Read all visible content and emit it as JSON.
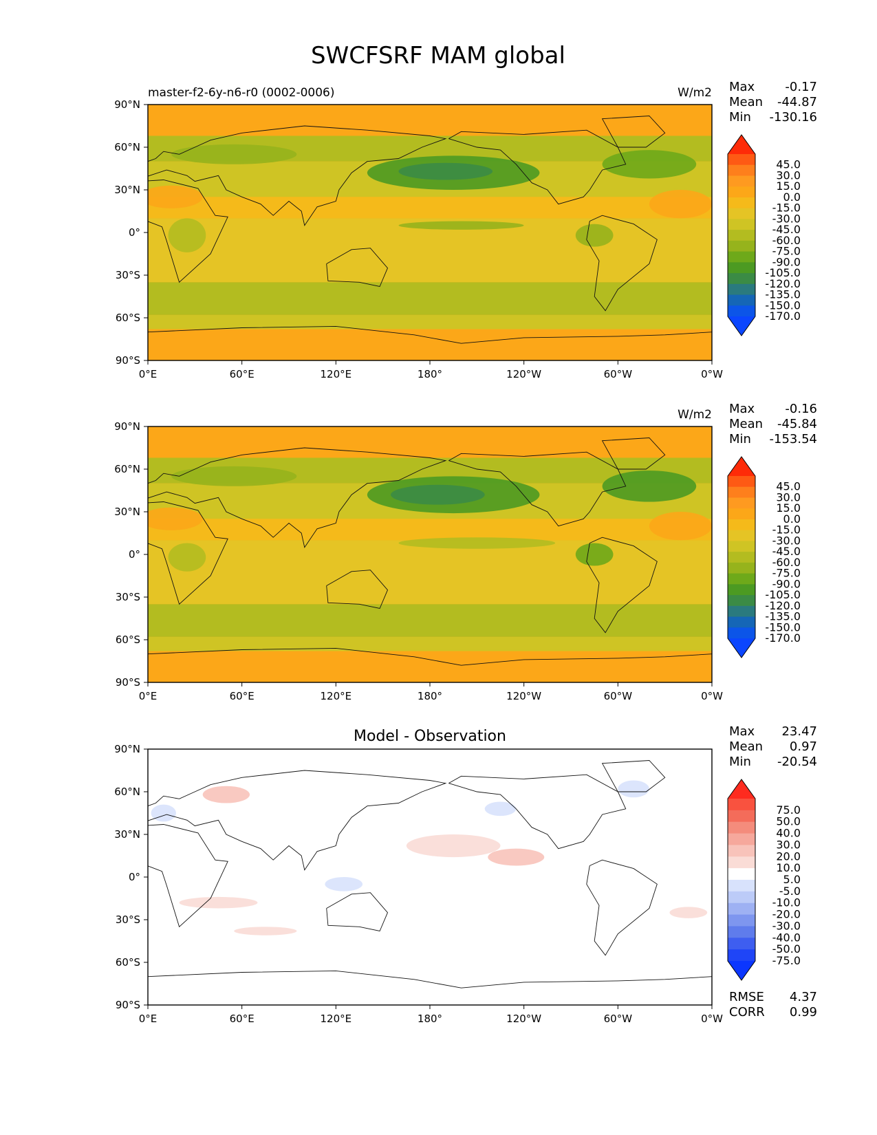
{
  "figure": {
    "title": "SWCFSRF MAM global"
  },
  "chart_data": [
    {
      "type": "heatmap",
      "panel": "model",
      "left_title": "master-f2-6y-n6-r0 (0002-0006)",
      "center_title": "",
      "units": "W/m2",
      "stats": [
        {
          "label": "Max",
          "value": "-0.17"
        },
        {
          "label": "Mean",
          "value": "-44.87"
        },
        {
          "label": "Min",
          "value": "-130.16"
        }
      ],
      "colorbar": {
        "labels": [
          "45.0",
          "30.0",
          "15.0",
          "0.0",
          "-15.0",
          "-30.0",
          "-45.0",
          "-60.0",
          "-75.0",
          "-90.0",
          "-105.0",
          "-120.0",
          "-135.0",
          "-150.0",
          "-170.0"
        ],
        "colors": [
          "#fe2b08",
          "#fe5a14",
          "#fe7f1c",
          "#fe9a20",
          "#fca718",
          "#f5ba1a",
          "#e5c425",
          "#cfc424",
          "#b3bc20",
          "#96b31c",
          "#6ea91a",
          "#4c9a22",
          "#3b8b45",
          "#2a7a7e",
          "#1566b6",
          "#0c55e8",
          "#0b46fe"
        ],
        "extend": "both"
      },
      "x_ticks": [
        "0°E",
        "60°E",
        "120°E",
        "180°",
        "120°W",
        "60°W",
        "0°W"
      ],
      "y_ticks": [
        "90°N",
        "60°N",
        "30°N",
        "0°",
        "30°S",
        "60°S",
        "90°S"
      ],
      "xlim": [
        0,
        360
      ],
      "ylim": [
        -90,
        90
      ],
      "map_background": "#fca718",
      "field_bands": [
        {
          "lat_range": [
            68,
            90
          ],
          "color": "#fca718"
        },
        {
          "lat_range": [
            50,
            68
          ],
          "color": "#b3bc20"
        },
        {
          "lat_range": [
            25,
            50
          ],
          "color": "#cfc424"
        },
        {
          "lat_range": [
            10,
            25
          ],
          "color": "#f5ba1a"
        },
        {
          "lat_range": [
            -15,
            10
          ],
          "color": "#e5c425"
        },
        {
          "lat_range": [
            -35,
            -15
          ],
          "color": "#e5c425"
        },
        {
          "lat_range": [
            -58,
            -35
          ],
          "color": "#b3bc20"
        },
        {
          "lat_range": [
            -68,
            -58
          ],
          "color": "#cfc424"
        },
        {
          "lat_range": [
            -90,
            -68
          ],
          "color": "#fca718"
        }
      ],
      "field_blobs": [
        {
          "lon": 195,
          "lat": 42,
          "rlon": 55,
          "rlat": 12,
          "color": "#4c9a22"
        },
        {
          "lon": 190,
          "lat": 43,
          "rlon": 30,
          "rlat": 6,
          "color": "#3b8b45"
        },
        {
          "lon": 320,
          "lat": 48,
          "rlon": 30,
          "rlat": 10,
          "color": "#6ea91a"
        },
        {
          "lon": 55,
          "lat": 55,
          "rlon": 40,
          "rlat": 7,
          "color": "#96b31c"
        },
        {
          "lon": 200,
          "lat": 5,
          "rlon": 40,
          "rlat": 3,
          "color": "#96b31c"
        },
        {
          "lon": 25,
          "lat": -2,
          "rlon": 12,
          "rlat": 12,
          "color": "#b3bc20"
        },
        {
          "lon": 285,
          "lat": -2,
          "rlon": 12,
          "rlat": 8,
          "color": "#96b31c"
        },
        {
          "lon": 15,
          "lat": 25,
          "rlon": 20,
          "rlat": 8,
          "color": "#fca718"
        },
        {
          "lon": 340,
          "lat": 20,
          "rlon": 20,
          "rlat": 10,
          "color": "#fca718"
        }
      ]
    },
    {
      "type": "heatmap",
      "panel": "observation",
      "left_title": "",
      "center_title": "",
      "units": "W/m2",
      "stats": [
        {
          "label": "Max",
          "value": "-0.16"
        },
        {
          "label": "Mean",
          "value": "-45.84"
        },
        {
          "label": "Min",
          "value": "-153.54"
        }
      ],
      "colorbar": {
        "labels": [
          "45.0",
          "30.0",
          "15.0",
          "0.0",
          "-15.0",
          "-30.0",
          "-45.0",
          "-60.0",
          "-75.0",
          "-90.0",
          "-105.0",
          "-120.0",
          "-135.0",
          "-150.0",
          "-170.0"
        ],
        "colors": [
          "#fe2b08",
          "#fe5a14",
          "#fe7f1c",
          "#fe9a20",
          "#fca718",
          "#f5ba1a",
          "#e5c425",
          "#cfc424",
          "#b3bc20",
          "#96b31c",
          "#6ea91a",
          "#4c9a22",
          "#3b8b45",
          "#2a7a7e",
          "#1566b6",
          "#0c55e8",
          "#0b46fe"
        ],
        "extend": "both"
      },
      "x_ticks": [
        "0°E",
        "60°E",
        "120°E",
        "180°",
        "120°W",
        "60°W",
        "0°W"
      ],
      "y_ticks": [
        "90°N",
        "60°N",
        "30°N",
        "0°",
        "30°S",
        "60°S",
        "90°S"
      ],
      "xlim": [
        0,
        360
      ],
      "ylim": [
        -90,
        90
      ],
      "map_background": "#fca718",
      "field_bands": [
        {
          "lat_range": [
            68,
            90
          ],
          "color": "#fca718"
        },
        {
          "lat_range": [
            50,
            68
          ],
          "color": "#b3bc20"
        },
        {
          "lat_range": [
            25,
            50
          ],
          "color": "#cfc424"
        },
        {
          "lat_range": [
            10,
            25
          ],
          "color": "#f5ba1a"
        },
        {
          "lat_range": [
            -15,
            10
          ],
          "color": "#e5c425"
        },
        {
          "lat_range": [
            -35,
            -15
          ],
          "color": "#e5c425"
        },
        {
          "lat_range": [
            -58,
            -35
          ],
          "color": "#b3bc20"
        },
        {
          "lat_range": [
            -68,
            -58
          ],
          "color": "#cfc424"
        },
        {
          "lat_range": [
            -90,
            -68
          ],
          "color": "#fca718"
        }
      ],
      "field_blobs": [
        {
          "lon": 195,
          "lat": 42,
          "rlon": 55,
          "rlat": 13,
          "color": "#4c9a22"
        },
        {
          "lon": 185,
          "lat": 42,
          "rlon": 30,
          "rlat": 7,
          "color": "#3b8b45"
        },
        {
          "lon": 320,
          "lat": 48,
          "rlon": 30,
          "rlat": 11,
          "color": "#4c9a22"
        },
        {
          "lon": 55,
          "lat": 55,
          "rlon": 40,
          "rlat": 7,
          "color": "#96b31c"
        },
        {
          "lon": 210,
          "lat": 8,
          "rlon": 50,
          "rlat": 4,
          "color": "#b3bc20"
        },
        {
          "lon": 25,
          "lat": -2,
          "rlon": 12,
          "rlat": 10,
          "color": "#b3bc20"
        },
        {
          "lon": 285,
          "lat": 0,
          "rlon": 12,
          "rlat": 8,
          "color": "#6ea91a"
        },
        {
          "lon": 15,
          "lat": 25,
          "rlon": 20,
          "rlat": 8,
          "color": "#fca718"
        },
        {
          "lon": 340,
          "lat": 20,
          "rlon": 20,
          "rlat": 10,
          "color": "#fca718"
        }
      ]
    },
    {
      "type": "heatmap",
      "panel": "difference",
      "left_title": "",
      "center_title": "Model - Observation",
      "units": "",
      "stats": [
        {
          "label": "Max",
          "value": "23.47"
        },
        {
          "label": "Mean",
          "value": "0.97"
        },
        {
          "label": "Min",
          "value": "-20.54"
        }
      ],
      "metrics": [
        {
          "label": "RMSE",
          "value": "4.37"
        },
        {
          "label": "CORR",
          "value": "0.99"
        }
      ],
      "colorbar": {
        "labels": [
          "75.0",
          "50.0",
          "40.0",
          "30.0",
          "20.0",
          "10.0",
          "5.0",
          "-5.0",
          "-10.0",
          "-20.0",
          "-30.0",
          "-40.0",
          "-50.0",
          "-75.0"
        ],
        "colors": [
          "#fe2b1f",
          "#f9523f",
          "#f46c5a",
          "#f48c7c",
          "#f6a89c",
          "#f8c3ba",
          "#fadcd6",
          "#ffffff",
          "#d8e2fc",
          "#bccbf8",
          "#9eb1f3",
          "#7e96ef",
          "#5f7cec",
          "#3e5ef0",
          "#1f45f7",
          "#0b36fe"
        ],
        "extend": "both"
      },
      "x_ticks": [
        "0°E",
        "60°E",
        "120°E",
        "180°",
        "120°W",
        "60°W",
        "0°W"
      ],
      "y_ticks": [
        "90°N",
        "60°N",
        "30°N",
        "0°",
        "30°S",
        "60°S",
        "90°S"
      ],
      "xlim": [
        0,
        360
      ],
      "ylim": [
        -90,
        90
      ],
      "map_background": "#ffffff",
      "field_bands": [],
      "field_blobs": [
        {
          "lon": 50,
          "lat": 58,
          "rlon": 15,
          "rlat": 6,
          "color": "#f8c3ba"
        },
        {
          "lon": 195,
          "lat": 22,
          "rlon": 30,
          "rlat": 8,
          "color": "#fadcd6"
        },
        {
          "lon": 235,
          "lat": 14,
          "rlon": 18,
          "rlat": 6,
          "color": "#f8c3ba"
        },
        {
          "lon": 310,
          "lat": 62,
          "rlon": 10,
          "rlat": 6,
          "color": "#d8e2fc"
        },
        {
          "lon": 225,
          "lat": 48,
          "rlon": 10,
          "rlat": 5,
          "color": "#d8e2fc"
        },
        {
          "lon": 125,
          "lat": -5,
          "rlon": 12,
          "rlat": 5,
          "color": "#d8e2fc"
        },
        {
          "lon": 45,
          "lat": -18,
          "rlon": 25,
          "rlat": 4,
          "color": "#fadcd6"
        },
        {
          "lon": 75,
          "lat": -38,
          "rlon": 20,
          "rlat": 3,
          "color": "#fadcd6"
        },
        {
          "lon": 10,
          "lat": 45,
          "rlon": 8,
          "rlat": 6,
          "color": "#d8e2fc"
        },
        {
          "lon": 345,
          "lat": -25,
          "rlon": 12,
          "rlat": 4,
          "color": "#fadcd6"
        }
      ]
    }
  ]
}
